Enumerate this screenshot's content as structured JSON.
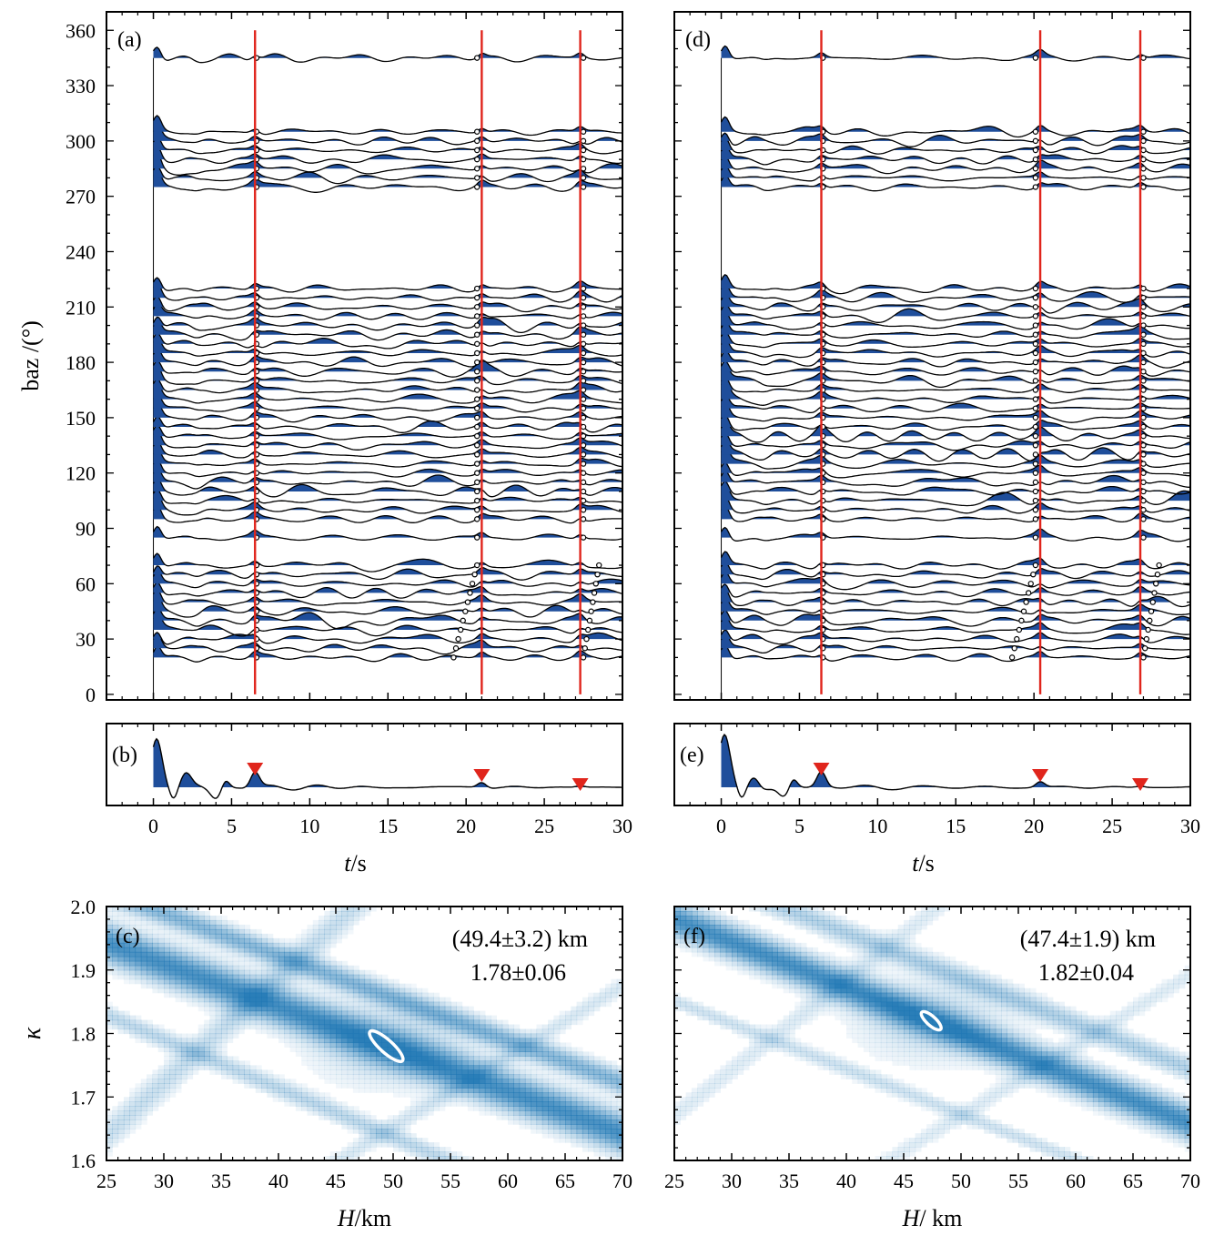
{
  "figure": {
    "colors": {
      "fill": "#1f4e9b",
      "marker": "#e0251c",
      "heat": "#1f77b4",
      "ellipse": "#ffffff"
    }
  },
  "chart_data": [
    {
      "id": "a",
      "panel_label": "(a)",
      "type": "line",
      "description_of_axes": "wiggle traces of receiver functions by back azimuth",
      "ylabel": "baz /(°)",
      "xlim": [
        -3,
        30
      ],
      "ylim": [
        -3,
        370
      ],
      "yticks": [
        0,
        30,
        60,
        90,
        120,
        150,
        180,
        210,
        240,
        270,
        300,
        330,
        360
      ],
      "xticks": [
        0,
        5,
        10,
        15,
        20,
        25,
        30
      ],
      "phase_times": [
        6.5,
        21.0,
        27.3
      ],
      "trace_baz": [
        20,
        25,
        30,
        35,
        40,
        45,
        50,
        55,
        60,
        65,
        70,
        85,
        95,
        100,
        105,
        110,
        115,
        120,
        125,
        130,
        135,
        140,
        145,
        150,
        155,
        160,
        165,
        170,
        175,
        180,
        185,
        190,
        195,
        200,
        205,
        210,
        215,
        220,
        275,
        280,
        285,
        290,
        295,
        300,
        305,
        345
      ]
    },
    {
      "id": "b",
      "panel_label": "(b)",
      "type": "line",
      "description_of_axes": "stacked receiver function",
      "xlabel_italic": "t",
      "xlabel_unit": "/s",
      "xlim": [
        -3,
        30
      ],
      "xticks": [
        0,
        5,
        10,
        15,
        20,
        25,
        30
      ],
      "phase_times": [
        6.5,
        21.0,
        27.3
      ]
    },
    {
      "id": "c",
      "panel_label": "(c)",
      "type": "heatmap",
      "xlabel_italic": "H",
      "xlabel_unit": "/km",
      "ylabel": "κ",
      "xlim": [
        25,
        70
      ],
      "ylim": [
        1.6,
        2.0
      ],
      "xticks": [
        25,
        30,
        35,
        40,
        45,
        50,
        55,
        60,
        65,
        70
      ],
      "yticks": [
        1.6,
        1.7,
        1.8,
        1.9,
        2.0
      ],
      "best_H": 49.4,
      "best_kappa": 1.78,
      "annotation_line1": "(49.4±3.2) km",
      "annotation_line2": "1.78±0.06"
    },
    {
      "id": "d",
      "panel_label": "(d)",
      "type": "line",
      "xlim": [
        -3,
        30
      ],
      "ylim": [
        -3,
        370
      ],
      "xticks": [
        0,
        5,
        10,
        15,
        20,
        25,
        30
      ],
      "phase_times": [
        6.4,
        20.4,
        26.8
      ],
      "trace_baz": [
        20,
        25,
        30,
        35,
        40,
        45,
        50,
        55,
        60,
        65,
        70,
        85,
        95,
        100,
        105,
        110,
        115,
        120,
        125,
        130,
        135,
        140,
        145,
        150,
        155,
        160,
        165,
        170,
        175,
        180,
        185,
        190,
        195,
        200,
        205,
        210,
        215,
        220,
        275,
        280,
        285,
        290,
        295,
        300,
        305,
        345
      ]
    },
    {
      "id": "e",
      "panel_label": "(e)",
      "type": "line",
      "xlabel_italic": "t",
      "xlabel_unit": "/s",
      "xlim": [
        -3,
        30
      ],
      "xticks": [
        0,
        5,
        10,
        15,
        20,
        25,
        30
      ],
      "phase_times": [
        6.4,
        20.4,
        26.8
      ]
    },
    {
      "id": "f",
      "panel_label": "(f)",
      "type": "heatmap",
      "xlabel_italic": "H",
      "xlabel_unit": "/ km",
      "xlim": [
        25,
        70
      ],
      "ylim": [
        1.6,
        2.0
      ],
      "xticks": [
        25,
        30,
        35,
        40,
        45,
        50,
        55,
        60,
        65,
        70
      ],
      "yticks": [
        1.6,
        1.7,
        1.8,
        1.9,
        2.0
      ],
      "best_H": 47.4,
      "best_kappa": 1.82,
      "annotation_line1": "(47.4±1.9) km",
      "annotation_line2": "1.82±0.04"
    }
  ]
}
